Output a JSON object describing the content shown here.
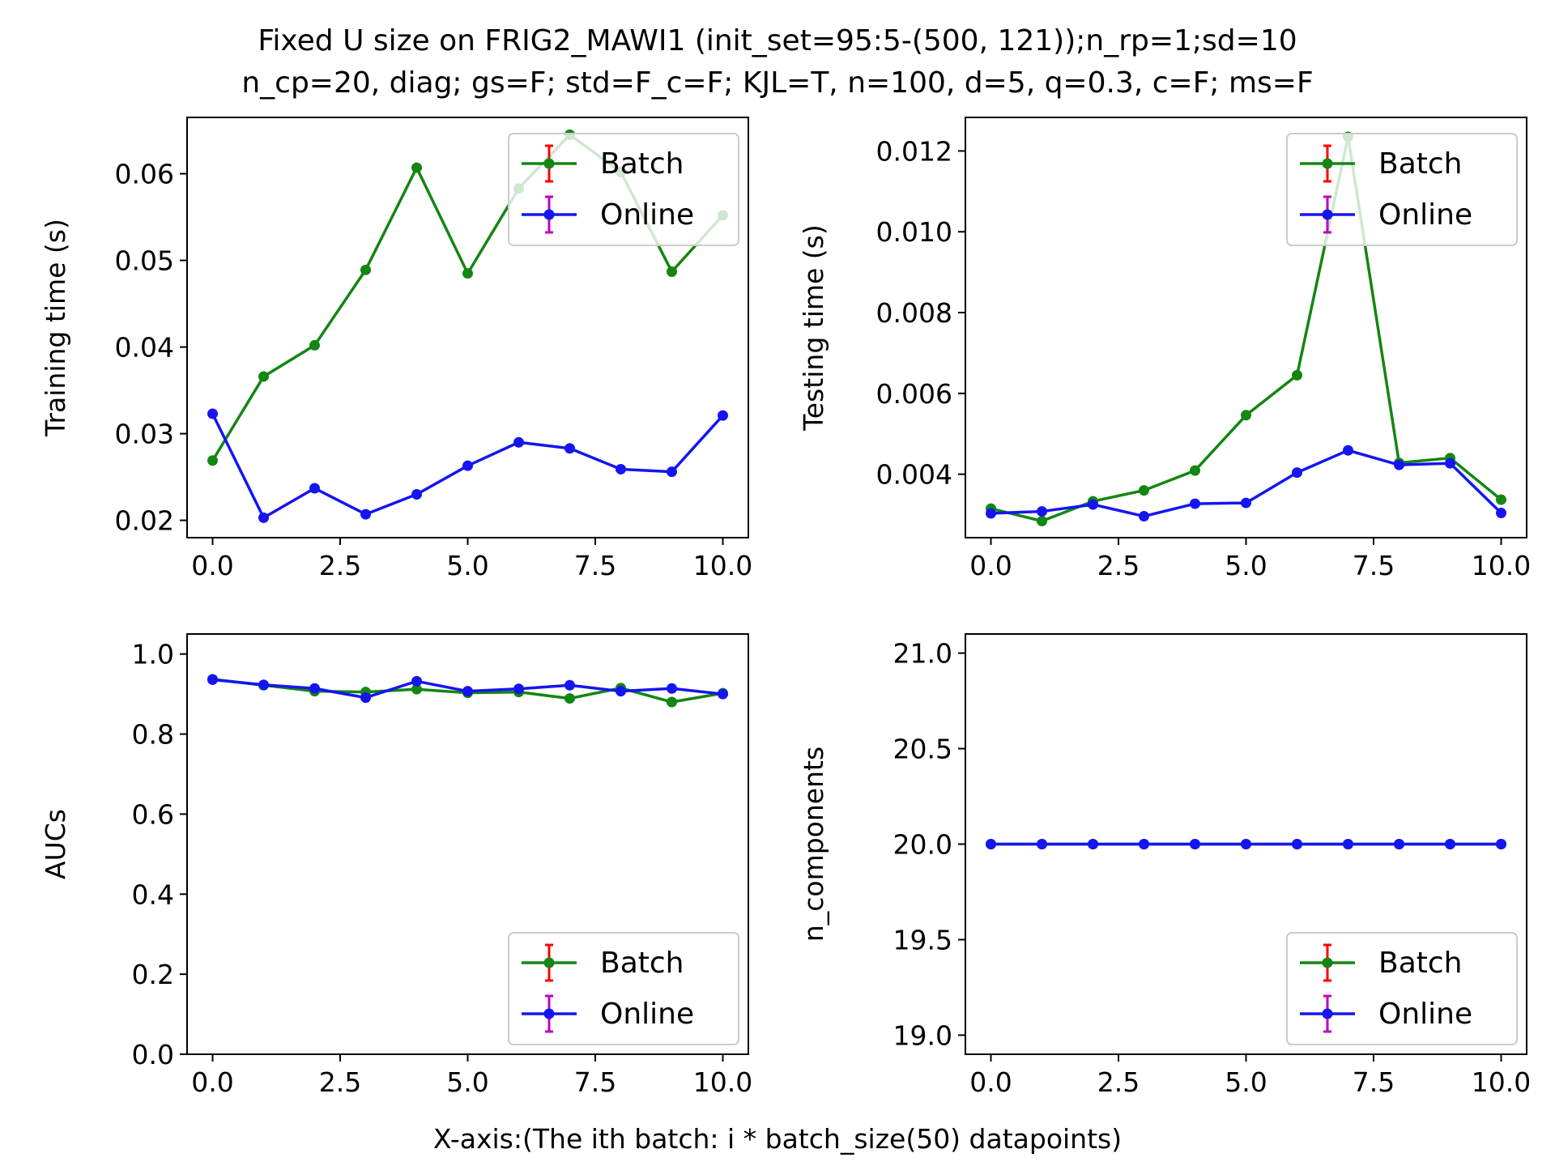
{
  "figure": {
    "title_line1": "Fixed U size on FRIG2_MAWI1 (init_set=95:5-(500, 121));n_rp=1;sd=10",
    "title_line2": "n_cp=20, diag; gs=F; std=F_c=F; KJL=T, n=100, d=5, q=0.3, c=F; ms=F",
    "xlabel": "X-axis:(The ith batch: i * batch_size(50) datapoints)"
  },
  "colors": {
    "batch": "#138613",
    "online": "#1515f0",
    "batch_err": "#ff0000",
    "online_err": "#c000c0"
  },
  "chart_data": [
    {
      "type": "line",
      "ylabel": "Training time (s)",
      "xlim": [
        -0.5,
        10.5
      ],
      "ylim": [
        0.018,
        0.0665
      ],
      "xticks": [
        "0.0",
        "2.5",
        "5.0",
        "7.5",
        "10.0"
      ],
      "yticks": [
        "0.02",
        "0.03",
        "0.04",
        "0.05",
        "0.06"
      ],
      "legend": "top-right",
      "x": [
        0,
        1,
        2,
        3,
        4,
        5,
        6,
        7,
        8,
        9,
        10
      ],
      "series": [
        {
          "name": "Batch",
          "values": [
            0.0269,
            0.0366,
            0.0402,
            0.0489,
            0.0607,
            0.0485,
            0.0583,
            0.0645,
            0.0602,
            0.0487,
            0.0552
          ]
        },
        {
          "name": "Online",
          "values": [
            0.0323,
            0.0203,
            0.0237,
            0.0207,
            0.023,
            0.0263,
            0.029,
            0.0283,
            0.0259,
            0.0256,
            0.0321
          ]
        }
      ]
    },
    {
      "type": "line",
      "ylabel": "Testing time (s)",
      "xlim": [
        -0.5,
        10.5
      ],
      "ylim": [
        0.00243,
        0.01283
      ],
      "xticks": [
        "0.0",
        "2.5",
        "5.0",
        "7.5",
        "10.0"
      ],
      "yticks": [
        "0.004",
        "0.006",
        "0.008",
        "0.010",
        "0.012"
      ],
      "legend": "top-right",
      "x": [
        0,
        1,
        2,
        3,
        4,
        5,
        6,
        7,
        8,
        9,
        10
      ],
      "series": [
        {
          "name": "Batch",
          "values": [
            0.00315,
            0.00284,
            0.00333,
            0.0036,
            0.00409,
            0.00546,
            0.00645,
            0.01235,
            0.00428,
            0.0044,
            0.00337
          ]
        },
        {
          "name": "Online",
          "values": [
            0.00303,
            0.00308,
            0.00325,
            0.00296,
            0.00327,
            0.00329,
            0.00404,
            0.00459,
            0.00423,
            0.00427,
            0.00304
          ]
        }
      ]
    },
    {
      "type": "line",
      "ylabel": "AUCs",
      "xlim": [
        -0.5,
        10.5
      ],
      "ylim": [
        0.0,
        1.05
      ],
      "xticks": [
        "0.0",
        "2.5",
        "5.0",
        "7.5",
        "10.0"
      ],
      "yticks": [
        "0.0",
        "0.2",
        "0.4",
        "0.6",
        "0.8",
        "1.0"
      ],
      "legend": "bottom-right",
      "x": [
        0,
        1,
        2,
        3,
        4,
        5,
        6,
        7,
        8,
        9,
        10
      ],
      "series": [
        {
          "name": "Batch",
          "values": [
            0.937,
            0.922,
            0.907,
            0.905,
            0.912,
            0.903,
            0.905,
            0.889,
            0.915,
            0.88,
            0.902
          ]
        },
        {
          "name": "Online",
          "values": [
            0.936,
            0.923,
            0.914,
            0.891,
            0.932,
            0.907,
            0.913,
            0.922,
            0.907,
            0.914,
            0.9
          ]
        }
      ]
    },
    {
      "type": "line",
      "ylabel": "n_components",
      "xlim": [
        -0.5,
        10.5
      ],
      "ylim": [
        18.9,
        21.1
      ],
      "xticks": [
        "0.0",
        "2.5",
        "5.0",
        "7.5",
        "10.0"
      ],
      "yticks": [
        "19.0",
        "19.5",
        "20.0",
        "20.5",
        "21.0"
      ],
      "legend": "bottom-right",
      "x": [
        0,
        1,
        2,
        3,
        4,
        5,
        6,
        7,
        8,
        9,
        10
      ],
      "series": [
        {
          "name": "Batch",
          "values": [
            20,
            20,
            20,
            20,
            20,
            20,
            20,
            20,
            20,
            20,
            20
          ]
        },
        {
          "name": "Online",
          "values": [
            20,
            20,
            20,
            20,
            20,
            20,
            20,
            20,
            20,
            20,
            20
          ]
        }
      ]
    }
  ]
}
